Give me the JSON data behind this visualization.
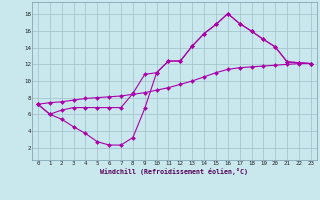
{
  "bg_color": "#c8e8ee",
  "line_color": "#aa00aa",
  "grid_color": "#a0bfc8",
  "xlim_min": -0.5,
  "xlim_max": 23.5,
  "ylim_min": 0.5,
  "ylim_max": 19.5,
  "xticks": [
    0,
    1,
    2,
    3,
    4,
    5,
    6,
    7,
    8,
    9,
    10,
    11,
    12,
    13,
    14,
    15,
    16,
    17,
    18,
    19,
    20,
    21,
    22,
    23
  ],
  "yticks": [
    2,
    4,
    6,
    8,
    10,
    12,
    14,
    16,
    18
  ],
  "xlabel": "Windchill (Refroidissement éolien,°C)",
  "line1_x": [
    0,
    1,
    2,
    3,
    4,
    5,
    6,
    7,
    8,
    9,
    10,
    11,
    12,
    13,
    14,
    15,
    16,
    17,
    18,
    19,
    20,
    21,
    22,
    23
  ],
  "line1_y": [
    7.2,
    6.0,
    5.4,
    4.5,
    3.7,
    2.7,
    2.3,
    2.3,
    3.2,
    6.7,
    11.0,
    12.4,
    12.4,
    14.2,
    15.7,
    16.8,
    18.1,
    16.9,
    16.0,
    15.0,
    14.1,
    12.3,
    12.2,
    12.1
  ],
  "line2_x": [
    0,
    1,
    2,
    3,
    4,
    5,
    6,
    7,
    8,
    9,
    10,
    11,
    12,
    13,
    14,
    15,
    16,
    17,
    18,
    19,
    20,
    21,
    22,
    23
  ],
  "line2_y": [
    7.2,
    6.0,
    6.5,
    6.8,
    6.8,
    6.8,
    6.8,
    6.8,
    8.5,
    10.8,
    11.0,
    12.4,
    12.4,
    14.2,
    15.7,
    16.8,
    18.1,
    16.9,
    16.0,
    15.0,
    14.1,
    12.3,
    12.2,
    12.1
  ],
  "line3_x": [
    0,
    1,
    2,
    3,
    4,
    5,
    6,
    7,
    8,
    9,
    10,
    11,
    12,
    13,
    14,
    15,
    16,
    17,
    18,
    19,
    20,
    21,
    22,
    23
  ],
  "line3_y": [
    7.2,
    7.4,
    7.5,
    7.7,
    7.9,
    8.0,
    8.1,
    8.2,
    8.4,
    8.6,
    8.9,
    9.2,
    9.6,
    10.0,
    10.5,
    11.0,
    11.4,
    11.6,
    11.7,
    11.8,
    11.9,
    12.0,
    12.1,
    12.1
  ]
}
